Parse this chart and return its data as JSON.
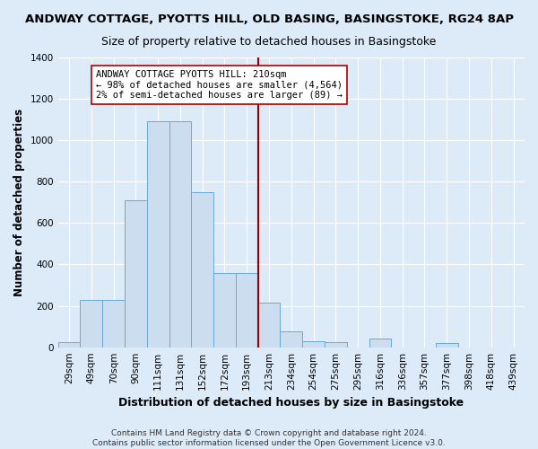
{
  "title1": "ANDWAY COTTAGE, PYOTTS HILL, OLD BASING, BASINGSTOKE, RG24 8AP",
  "title2": "Size of property relative to detached houses in Basingstoke",
  "xlabel": "Distribution of detached houses by size in Basingstoke",
  "ylabel": "Number of detached properties",
  "categories": [
    "29sqm",
    "49sqm",
    "70sqm",
    "90sqm",
    "111sqm",
    "131sqm",
    "152sqm",
    "172sqm",
    "193sqm",
    "213sqm",
    "234sqm",
    "254sqm",
    "275sqm",
    "295sqm",
    "316sqm",
    "336sqm",
    "357sqm",
    "377sqm",
    "398sqm",
    "418sqm",
    "439sqm"
  ],
  "values": [
    25,
    230,
    230,
    710,
    1090,
    1090,
    750,
    360,
    360,
    215,
    75,
    30,
    25,
    0,
    40,
    0,
    0,
    20,
    0,
    0,
    0
  ],
  "bar_color": "#ccddf0",
  "bar_edge_color": "#6aaad4",
  "vline_color": "#9b0000",
  "vline_index": 9,
  "annotation_text": "ANDWAY COTTAGE PYOTTS HILL: 210sqm\n← 98% of detached houses are smaller (4,564)\n2% of semi-detached houses are larger (89) →",
  "annotation_box_color": "white",
  "annotation_border_color": "#aa0000",
  "ylim": [
    0,
    1400
  ],
  "yticks": [
    0,
    200,
    400,
    600,
    800,
    1000,
    1200,
    1400
  ],
  "footer1": "Contains HM Land Registry data © Crown copyright and database right 2024.",
  "footer2": "Contains public sector information licensed under the Open Government Licence v3.0.",
  "bg_color": "#ddeaf8",
  "plot_bg_color": "#ddeaf8",
  "grid_color": "#ffffff",
  "title1_fontsize": 9.5,
  "title2_fontsize": 9,
  "tick_fontsize": 7.5,
  "xlabel_fontsize": 9,
  "ylabel_fontsize": 8.5,
  "footer_fontsize": 6.5,
  "annot_fontsize": 7.5
}
